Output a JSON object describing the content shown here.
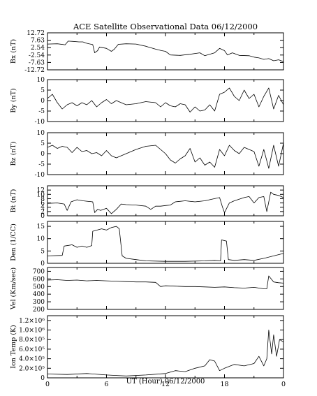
{
  "figure": {
    "title": "ACE Satellite Observational Data   06/12/2000",
    "xlabel": "UT (Hour)   06/12/2000"
  },
  "chart_data": {
    "type": "line",
    "x_ticks": [
      "0",
      "6",
      "12",
      "18",
      "0"
    ],
    "x_range_hours": [
      0,
      24
    ],
    "panels": [
      {
        "id": "bx",
        "ylabel": "Bx (nT)",
        "ylim": [
          -12.72,
          12.72
        ],
        "yticks": [
          12.72,
          7.63,
          2.54,
          -2.54,
          -7.63,
          -12.72
        ],
        "ytick_labels": [
          "12.72",
          "7.63",
          "2.54",
          "-2.54",
          "-7.63",
          "-12.72"
        ],
        "series": [
          {
            "x": [
              0,
              1.0,
              1.8,
              2.1,
              2.6,
              3.2,
              3.6,
              4.0,
              4.6,
              4.8,
              5.1,
              5.3,
              6.0,
              6.5,
              6.8,
              7.2,
              8.0,
              9.0,
              10.0,
              11.0,
              11.6,
              12.0,
              12.5,
              13.5,
              14.5,
              15.0,
              15.5,
              16.0,
              17.0,
              17.5,
              18.0,
              18.3,
              18.8,
              19.5,
              20.5,
              21.0,
              21.5,
              22.0,
              22.5,
              23.0,
              23.5,
              24.0
            ],
            "y": [
              5.0,
              5.2,
              4.5,
              7.0,
              6.8,
              6.5,
              6.5,
              5.5,
              4.6,
              -1.0,
              0.5,
              3.0,
              2.0,
              0.0,
              1.5,
              4.8,
              5.2,
              5.0,
              3.5,
              1.5,
              0.5,
              0.0,
              -2.5,
              -2.8,
              -2.0,
              -1.5,
              -1.0,
              -3.0,
              -1.0,
              2.0,
              0.5,
              -2.5,
              -1.0,
              -2.8,
              -3.0,
              -4.0,
              -4.5,
              -5.5,
              -5.0,
              -6.5,
              -5.8,
              -7.0
            ]
          }
        ]
      },
      {
        "id": "by",
        "ylabel": "By (nT)",
        "ylim": [
          -10,
          10
        ],
        "yticks": [
          10,
          5,
          0,
          -5,
          -10
        ],
        "ytick_labels": [
          "10",
          "5",
          "0",
          "-5",
          "-10"
        ],
        "series": [
          {
            "x": [
              0,
              0.5,
              1.0,
              1.5,
              2.0,
              2.5,
              3.0,
              3.5,
              4.0,
              4.5,
              5.0,
              5.5,
              6.0,
              6.5,
              7.0,
              7.5,
              8.0,
              9.0,
              10.0,
              11.0,
              11.5,
              12.0,
              12.5,
              13.0,
              13.5,
              14.0,
              14.5,
              15.0,
              15.5,
              16.0,
              16.5,
              17.0,
              17.5,
              18.0,
              18.5,
              19.0,
              19.5,
              20.0,
              20.5,
              21.0,
              21.5,
              22.0,
              22.5,
              23.0,
              23.5,
              24.0
            ],
            "y": [
              1.0,
              3.0,
              -1.0,
              -4.0,
              -2.0,
              -1.0,
              -2.5,
              -1.0,
              -2.0,
              0.0,
              -3.0,
              -1.0,
              0.5,
              -1.5,
              0.0,
              -1.0,
              -2.0,
              -1.5,
              -0.5,
              -1.0,
              -3.0,
              -1.0,
              -2.5,
              -3.0,
              -1.5,
              -2.0,
              -5.5,
              -3.0,
              -5.0,
              -4.5,
              -2.0,
              -5.0,
              3.0,
              4.0,
              6.0,
              2.0,
              0.0,
              5.0,
              1.0,
              3.0,
              -3.0,
              2.0,
              6.0,
              -4.0,
              2.5,
              -2.0
            ]
          }
        ]
      },
      {
        "id": "bz",
        "ylabel": "Bz (nT)",
        "ylim": [
          -10,
          10
        ],
        "yticks": [
          10,
          5,
          0,
          -5,
          -10
        ],
        "ytick_labels": [
          "10",
          "5",
          "0",
          "-5",
          "-10"
        ],
        "series": [
          {
            "x": [
              0,
              0.5,
              1.0,
              1.5,
              2.0,
              2.5,
              3.0,
              3.5,
              4.0,
              4.5,
              5.0,
              5.5,
              6.0,
              6.5,
              7.0,
              7.5,
              8.0,
              9.0,
              10.0,
              11.0,
              11.5,
              12.0,
              12.5,
              13.0,
              13.5,
              14.0,
              14.5,
              15.0,
              15.5,
              16.0,
              16.5,
              17.0,
              17.5,
              18.0,
              18.5,
              19.0,
              19.5,
              20.0,
              20.5,
              21.0,
              21.5,
              22.0,
              22.5,
              23.0,
              23.5,
              24.0
            ],
            "y": [
              3.0,
              4.0,
              2.5,
              3.5,
              3.0,
              0.5,
              3.0,
              1.0,
              1.5,
              0.0,
              0.5,
              -1.0,
              1.5,
              -1.0,
              -2.0,
              -1.0,
              0.0,
              2.0,
              3.5,
              4.0,
              2.0,
              0.0,
              -3.0,
              -4.5,
              -2.5,
              -1.0,
              2.5,
              -4.0,
              -2.0,
              -5.5,
              -4.0,
              -6.5,
              2.0,
              -1.0,
              4.0,
              1.5,
              0.0,
              3.0,
              2.0,
              1.0,
              -6.0,
              2.0,
              -7.0,
              4.0,
              -6.0,
              5.0
            ]
          }
        ]
      },
      {
        "id": "bt",
        "ylabel": "Bt (nT)",
        "ylim": [
          0,
          14
        ],
        "yticks": [
          12,
          10,
          8,
          6,
          4,
          2,
          0
        ],
        "ytick_labels": [
          "12",
          "10",
          "8",
          "6",
          "4",
          "2",
          "0"
        ],
        "series": [
          {
            "x": [
              0,
              1.0,
              1.7,
              2.0,
              2.4,
              3.0,
              3.6,
              4.0,
              4.6,
              4.8,
              5.1,
              5.4,
              6.0,
              6.5,
              7.0,
              7.5,
              8.0,
              9.0,
              10.0,
              10.5,
              11.0,
              11.5,
              12.0,
              12.5,
              13.0,
              14.0,
              15.0,
              16.0,
              17.0,
              17.5,
              17.8,
              18.0,
              18.5,
              19.0,
              20.0,
              20.5,
              21.0,
              21.5,
              22.0,
              22.3,
              22.7,
              23.0,
              23.5,
              24.0
            ],
            "y": [
              5.8,
              6.0,
              5.5,
              2.5,
              6.5,
              7.5,
              7.0,
              6.8,
              6.5,
              1.5,
              3.0,
              2.5,
              3.5,
              1.0,
              3.0,
              5.5,
              5.2,
              5.0,
              4.5,
              3.0,
              4.5,
              4.5,
              4.8,
              5.0,
              6.5,
              7.0,
              6.5,
              7.0,
              8.0,
              8.5,
              4.0,
              1.5,
              6.0,
              7.0,
              8.5,
              9.0,
              6.0,
              8.5,
              9.0,
              2.0,
              11.0,
              10.0,
              9.5,
              8.5
            ]
          }
        ]
      },
      {
        "id": "den",
        "ylabel": "Den (1/CC)",
        "ylim": [
          0,
          17
        ],
        "yticks": [
          15,
          10,
          5,
          0
        ],
        "ytick_labels": [
          "15",
          "10",
          "5",
          "0"
        ],
        "series": [
          {
            "x": [
              0,
              1.5,
              1.7,
              2.5,
              3.0,
              3.5,
              4.0,
              4.5,
              4.6,
              5.5,
              6.0,
              6.5,
              7.0,
              7.3,
              7.6,
              8.0,
              9.0,
              10.0,
              12.0,
              14.0,
              16.0,
              17.0,
              17.6,
              17.7,
              18.2,
              18.4,
              19.0,
              20.0,
              21.0,
              22.0,
              23.0,
              24.0
            ],
            "y": [
              3.0,
              3.2,
              7.0,
              7.5,
              6.5,
              7.0,
              6.5,
              7.2,
              13.0,
              14.0,
              13.5,
              14.5,
              15.0,
              14.0,
              3.0,
              2.0,
              1.5,
              1.0,
              0.8,
              0.8,
              1.0,
              1.2,
              1.0,
              9.5,
              9.0,
              1.5,
              1.2,
              1.5,
              1.2,
              2.0,
              3.0,
              4.0
            ]
          }
        ]
      },
      {
        "id": "vel",
        "ylabel": "Vel (Km/sec)",
        "ylim": [
          200,
          750
        ],
        "yticks": [
          700,
          600,
          500,
          400,
          300,
          200
        ],
        "ytick_labels": [
          "700",
          "600",
          "500",
          "400",
          "300",
          "200"
        ],
        "series": [
          {
            "x": [
              0,
              1.0,
              2.0,
              3.0,
              4.0,
              5.0,
              6.0,
              7.0,
              8.0,
              9.0,
              10.0,
              11.0,
              11.5,
              12.0,
              13.0,
              14.0,
              15.0,
              16.0,
              17.0,
              18.0,
              19.0,
              20.0,
              21.0,
              22.0,
              22.3,
              22.5,
              23.0,
              23.5,
              24.0
            ],
            "y": [
              585,
              590,
              580,
              585,
              575,
              580,
              575,
              570,
              565,
              560,
              560,
              555,
              500,
              510,
              505,
              500,
              500,
              495,
              490,
              495,
              485,
              480,
              490,
              470,
              470,
              640,
              560,
              550,
              545
            ]
          }
        ]
      },
      {
        "id": "temp",
        "ylabel": "Ion Temp (K)",
        "ylim": [
          0,
          1300000.0
        ],
        "yticks": [
          1200000.0,
          1000000.0,
          800000.0,
          600000.0,
          400000.0,
          200000.0,
          0
        ],
        "ytick_labels": [
          "1.2×10⁶",
          "1.0×10⁶",
          "8.0×10⁵",
          "6.0×10⁵",
          "4.0×10⁵",
          "2.0×10⁵",
          "0"
        ],
        "series": [
          {
            "x": [
              0,
              2.0,
              4.0,
              6.0,
              7.0,
              8.0,
              10.0,
              12.0,
              13.0,
              14.0,
              15.0,
              16.0,
              16.5,
              17.0,
              17.5,
              18.0,
              19.0,
              20.0,
              21.0,
              21.5,
              22.0,
              22.3,
              22.5,
              22.8,
              23.0,
              23.3,
              23.6,
              24.0
            ],
            "y": [
              80000,
              70000,
              90000,
              60000,
              50000,
              40000,
              60000,
              90000,
              150000,
              130000,
              200000,
              250000,
              380000,
              350000,
              150000,
              200000,
              280000,
              250000,
              300000,
              450000,
              250000,
              400000,
              1000000,
              500000,
              900000,
              450000,
              800000,
              750000
            ]
          }
        ]
      }
    ]
  }
}
